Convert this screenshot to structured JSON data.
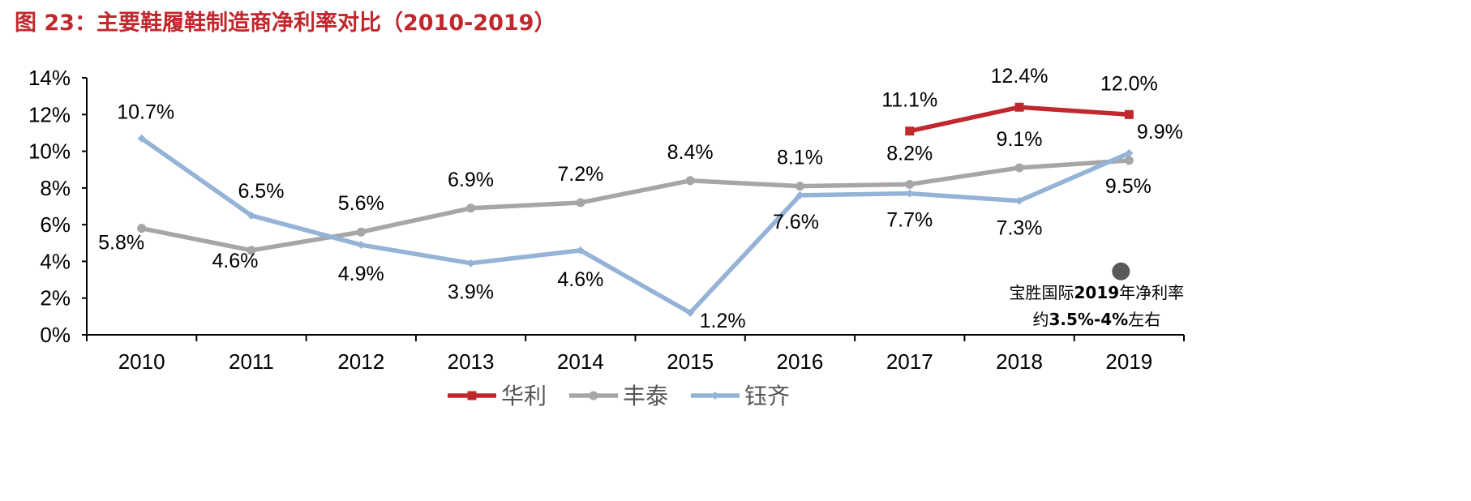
{
  "figure": {
    "title": "图 23：主要鞋履鞋制造商净利率对比（2010-2019）"
  },
  "chart_data": {
    "type": "line",
    "title": "",
    "xlabel": "",
    "ylabel": "",
    "categories": [
      "2010",
      "2011",
      "2012",
      "2013",
      "2014",
      "2015",
      "2016",
      "2017",
      "2018",
      "2019"
    ],
    "ylim": [
      0,
      14
    ],
    "yticks": [
      0,
      2,
      4,
      6,
      8,
      10,
      12,
      14
    ],
    "ytick_labels": [
      "0%",
      "2%",
      "4%",
      "6%",
      "8%",
      "10%",
      "12%",
      "14%"
    ],
    "grid": false,
    "legend_position": "bottom",
    "series": [
      {
        "name": "华利",
        "color": "#c0282d",
        "marker": "square",
        "values": [
          null,
          null,
          null,
          null,
          null,
          null,
          null,
          11.1,
          12.4,
          12.0
        ],
        "labels": [
          null,
          null,
          null,
          null,
          null,
          null,
          null,
          "11.1%",
          "12.4%",
          "12.0%"
        ]
      },
      {
        "name": "丰泰",
        "color": "#a6a6a6",
        "marker": "circle",
        "values": [
          5.8,
          4.6,
          5.6,
          6.9,
          7.2,
          8.4,
          8.1,
          8.2,
          9.1,
          9.5
        ],
        "labels": [
          "5.8%",
          "4.6%",
          "5.6%",
          "6.9%",
          "7.2%",
          "8.4%",
          "8.1%",
          "8.2%",
          "9.1%",
          "9.5%"
        ]
      },
      {
        "name": "钰齐",
        "color": "#94b3d7",
        "marker": "diamond",
        "values": [
          10.7,
          6.5,
          4.9,
          3.9,
          4.6,
          1.2,
          7.6,
          7.7,
          7.3,
          9.9
        ],
        "labels": [
          "10.7%",
          "6.5%",
          "4.9%",
          "3.9%",
          "4.6%",
          "1.2%",
          "7.6%",
          "7.7%",
          "7.3%",
          "9.9%"
        ]
      }
    ],
    "annotation": {
      "category": "2019",
      "value": 3.5,
      "marker_color": "#595959",
      "line1_a": "宝胜国际",
      "line1_b": "2019",
      "line1_c": "年净利率",
      "line2_a": "约",
      "line2_b": "3.5%-4%",
      "line2_c": "左右"
    }
  }
}
